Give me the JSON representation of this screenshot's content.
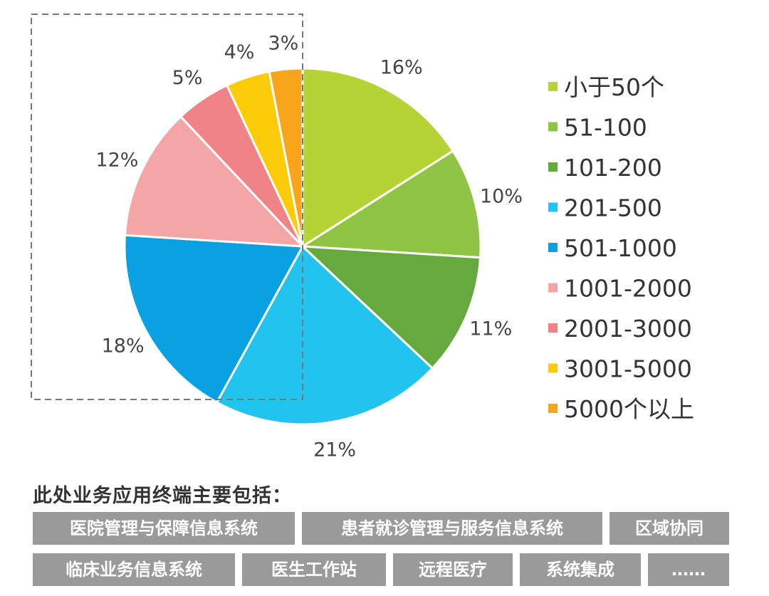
{
  "chart_data": {
    "type": "pie",
    "start": "12 o'clock",
    "direction": "clockwise",
    "legend_position": "right",
    "highlight": "dashed-box",
    "slices": [
      {
        "legend": "小于50个",
        "value": 16,
        "label": "16%",
        "color": "#b5d334"
      },
      {
        "legend": "51-100",
        "value": 10,
        "label": "10%",
        "color": "#8fc444"
      },
      {
        "legend": "101-200",
        "value": 11,
        "label": "11%",
        "color": "#66aa3f"
      },
      {
        "legend": "201-500",
        "value": 21,
        "label": "21%",
        "color": "#23c3ef"
      },
      {
        "legend": "501-1000",
        "value": 18,
        "label": "18%",
        "color": "#0aa1e3"
      },
      {
        "legend": "1001-2000",
        "value": 12,
        "label": "12%",
        "color": "#f4a6a6"
      },
      {
        "legend": "2001-3000",
        "value": 5,
        "label": "5%",
        "color": "#ef8387"
      },
      {
        "legend": "3001-5000",
        "value": 4,
        "label": "4%",
        "color": "#fccb09"
      },
      {
        "legend": "5000个以上",
        "value": 3,
        "label": "3%",
        "color": "#f8a51c"
      }
    ]
  },
  "note": {
    "title": "此处业务应用终端主要包括：",
    "tags": [
      "医院管理与保障信息系统",
      "患者就诊管理与服务信息系统",
      "区域协同",
      "临床业务信息系统",
      "医生工作站",
      "远程医疗",
      "系统集成",
      "……"
    ]
  }
}
